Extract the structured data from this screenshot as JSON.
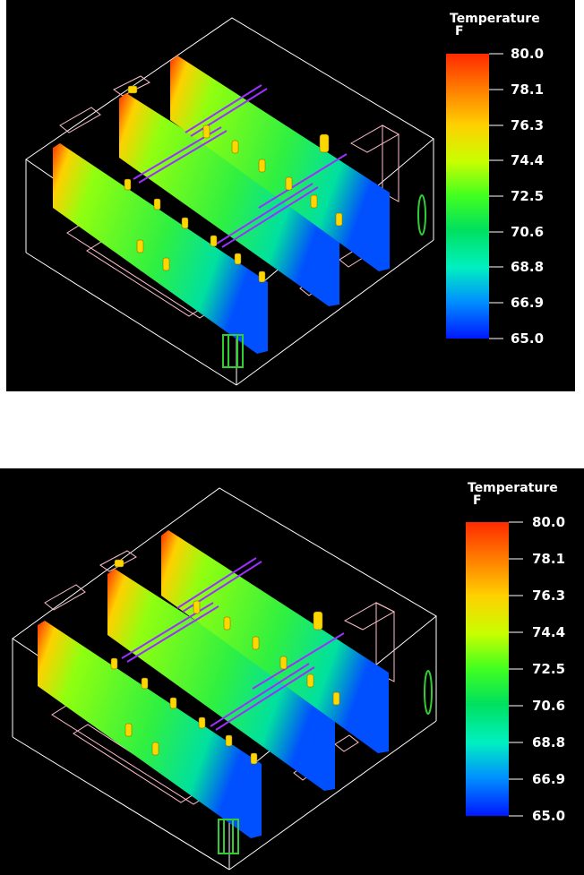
{
  "panels": [
    {
      "id": "top",
      "legend": {
        "title": "Temperature",
        "unit": "F",
        "ticks": [
          "80.0",
          "78.1",
          "76.3",
          "74.4",
          "72.5",
          "70.6",
          "68.8",
          "66.9",
          "65.0"
        ]
      }
    },
    {
      "id": "bottom",
      "legend": {
        "title": "Temperature",
        "unit": "F",
        "ticks": [
          "80.0",
          "78.1",
          "76.3",
          "74.4",
          "72.5",
          "70.6",
          "68.8",
          "66.9",
          "65.0"
        ]
      }
    }
  ],
  "colors": {
    "background": "#000000",
    "wireframe": "#ffffff",
    "furniture": "#ffc0cb",
    "ducts": "#8a2be2",
    "people": "#ffd700",
    "diffuser": "#32cd32"
  },
  "icons": [
    "room-wireframe",
    "temperature-slice-plane",
    "occupant-figure",
    "ceiling-duct",
    "floor-diffuser"
  ]
}
